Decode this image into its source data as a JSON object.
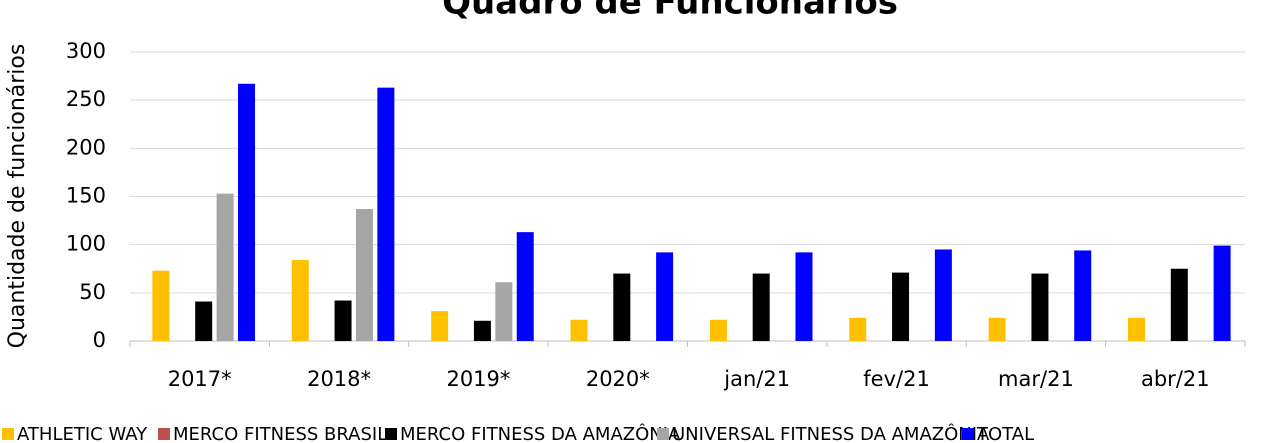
{
  "chart_data": {
    "type": "bar",
    "title": "Quadro de Funcionários",
    "y_label": "Quantidade de funcionários",
    "categories": [
      "2017*",
      "2018*",
      "2019*",
      "2020*",
      "jan/21",
      "fev/21",
      "mar/21",
      "abr/21"
    ],
    "series": [
      {
        "name": "ATHLETIC WAY",
        "color": "#ffc000",
        "values": [
          73,
          84,
          31,
          22,
          22,
          24,
          24,
          24
        ]
      },
      {
        "name": "MERCO FITNESS BRASIL",
        "color": "#c0504d",
        "values": [
          null,
          null,
          null,
          null,
          null,
          null,
          null,
          null
        ]
      },
      {
        "name": "MERCO FITNESS DA AMAZÔNIA",
        "color": "#000000",
        "values": [
          41,
          42,
          21,
          70,
          70,
          71,
          70,
          75
        ]
      },
      {
        "name": "UNIVERSAL FITNESS DA AMAZÔNIA",
        "color": "#a6a6a6",
        "values": [
          153,
          137,
          61,
          null,
          null,
          null,
          null,
          null
        ]
      },
      {
        "name": "TOTAL",
        "color": "#0000ff",
        "values": [
          267,
          263,
          113,
          92,
          92,
          95,
          94,
          99
        ]
      }
    ],
    "ylim": [
      0,
      300
    ],
    "yticks": [
      0,
      50,
      100,
      150,
      200,
      250,
      300
    ],
    "grid": true,
    "legend": "bottom"
  }
}
